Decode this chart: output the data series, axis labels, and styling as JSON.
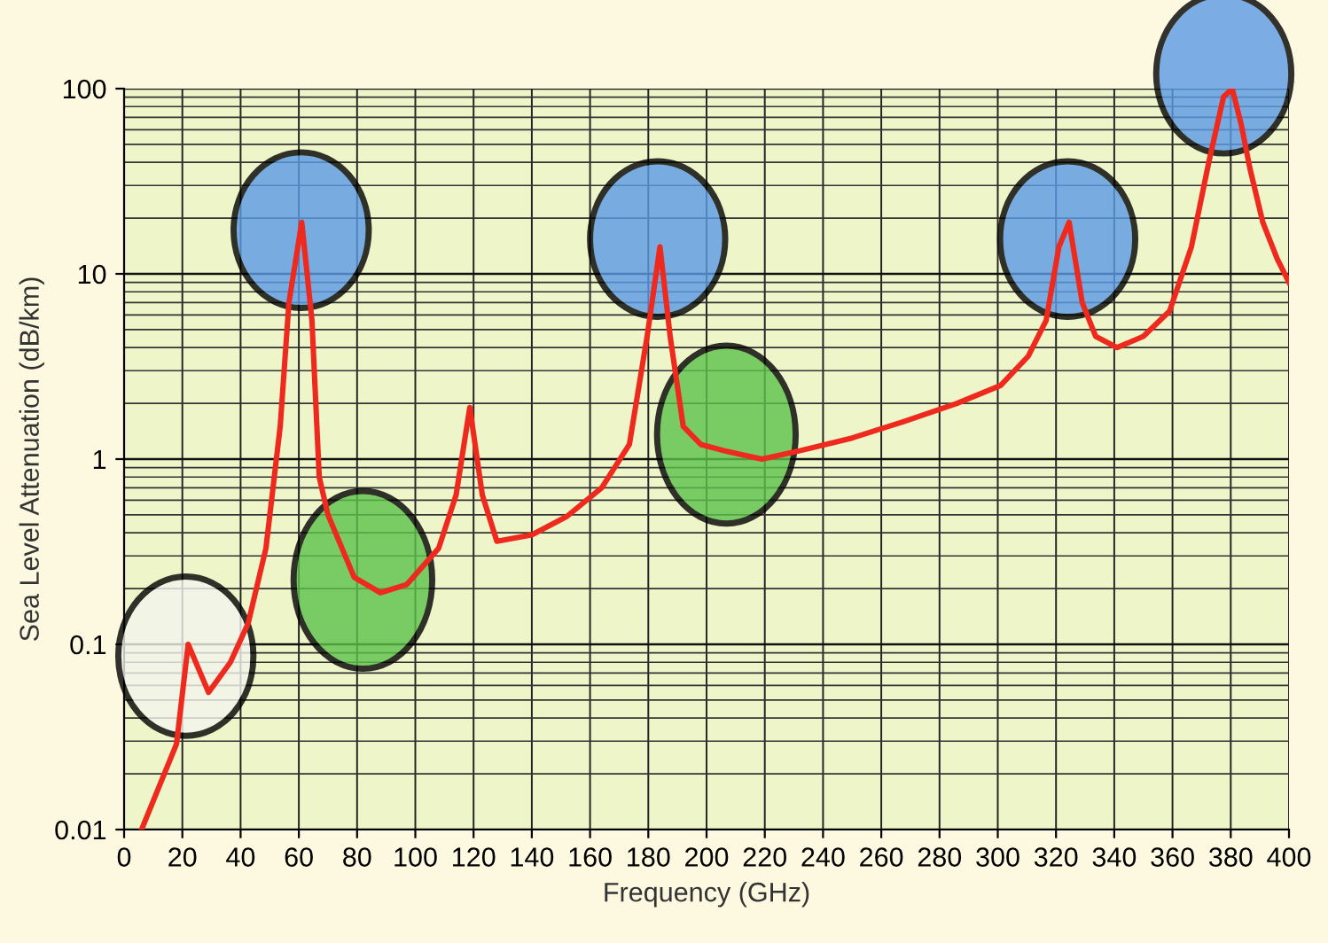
{
  "chart_data": {
    "type": "line",
    "xlabel": "Frequency (GHz)",
    "ylabel": "Sea Level Attenuation (dB/km)",
    "log": "y",
    "grid": true,
    "marker": "none",
    "line_style": "solid",
    "xlim": [
      0,
      400
    ],
    "xticks": [
      0,
      20,
      40,
      60,
      80,
      100,
      120,
      140,
      160,
      180,
      200,
      220,
      240,
      260,
      280,
      300,
      320,
      340,
      360,
      380,
      400
    ],
    "ylim": [
      0.01,
      100
    ],
    "yticks": [
      0.01,
      0.1,
      1,
      10,
      100
    ],
    "series": [
      {
        "color": "#ee2a1f",
        "x": [
          6,
          18,
          22,
          29,
          36.5,
          42.6,
          48.7,
          53.6,
          56.6,
          61,
          64.5,
          67,
          70,
          79,
          88,
          97,
          108,
          114,
          118.7,
          123,
          128,
          140,
          152,
          164,
          173.5,
          179.6,
          184,
          187.5,
          192,
          198,
          207,
          219,
          231,
          250,
          268,
          286,
          301,
          310.5,
          316.6,
          321,
          324.5,
          329,
          333.6,
          341,
          350,
          359,
          366.5,
          372.6,
          377.5,
          380.5,
          383.6,
          386.6,
          391,
          396,
          400
        ],
        "values": [
          0.01,
          0.029,
          0.1,
          0.055,
          0.08,
          0.13,
          0.33,
          1.5,
          7,
          19,
          5.6,
          0.8,
          0.5,
          0.23,
          0.19,
          0.21,
          0.33,
          0.64,
          1.9,
          0.64,
          0.36,
          0.39,
          0.49,
          0.7,
          1.2,
          4.6,
          14,
          4.6,
          1.5,
          1.2,
          1.1,
          1.0,
          1.1,
          1.3,
          1.6,
          2.0,
          2.5,
          3.6,
          5.6,
          14,
          19,
          7,
          4.6,
          4.0,
          4.6,
          6.3,
          14,
          41,
          90,
          100,
          64,
          37,
          19,
          12,
          9
        ]
      }
    ]
  }
}
